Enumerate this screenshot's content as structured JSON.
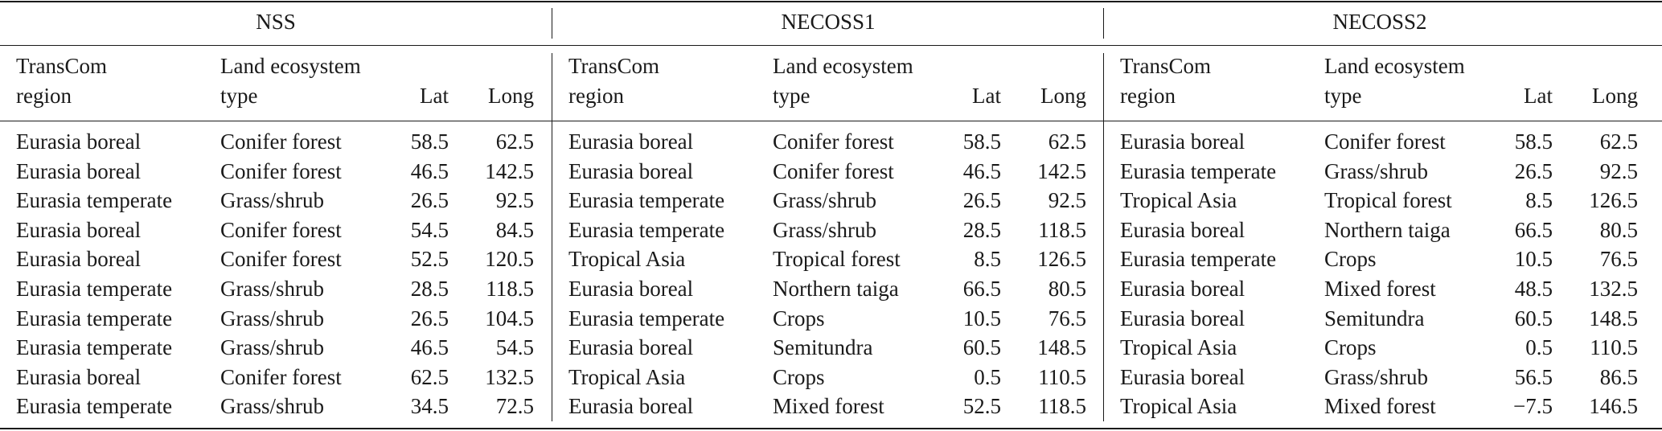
{
  "groups": [
    "NSS",
    "NECOSS1",
    "NECOSS2"
  ],
  "col_headers": {
    "region_line1": "TransCom",
    "region_line2": "region",
    "eco_line1": "Land ecosystem",
    "eco_line2": "type",
    "lat": "Lat",
    "long": "Long"
  },
  "rows": [
    [
      [
        "Eurasia boreal",
        "Conifer forest",
        "58.5",
        "62.5"
      ],
      [
        "Eurasia boreal",
        "Conifer forest",
        "58.5",
        "62.5"
      ],
      [
        "Eurasia boreal",
        "Conifer forest",
        "58.5",
        "62.5"
      ]
    ],
    [
      [
        "Eurasia boreal",
        "Conifer forest",
        "46.5",
        "142.5"
      ],
      [
        "Eurasia boreal",
        "Conifer forest",
        "46.5",
        "142.5"
      ],
      [
        "Eurasia temperate",
        "Grass/shrub",
        "26.5",
        "92.5"
      ]
    ],
    [
      [
        "Eurasia temperate",
        "Grass/shrub",
        "26.5",
        "92.5"
      ],
      [
        "Eurasia temperate",
        "Grass/shrub",
        "26.5",
        "92.5"
      ],
      [
        "Tropical Asia",
        "Tropical forest",
        "8.5",
        "126.5"
      ]
    ],
    [
      [
        "Eurasia boreal",
        "Conifer forest",
        "54.5",
        "84.5"
      ],
      [
        "Eurasia temperate",
        "Grass/shrub",
        "28.5",
        "118.5"
      ],
      [
        "Eurasia boreal",
        "Northern taiga",
        "66.5",
        "80.5"
      ]
    ],
    [
      [
        "Eurasia boreal",
        "Conifer forest",
        "52.5",
        "120.5"
      ],
      [
        "Tropical Asia",
        "Tropical forest",
        "8.5",
        "126.5"
      ],
      [
        "Eurasia temperate",
        "Crops",
        "10.5",
        "76.5"
      ]
    ],
    [
      [
        "Eurasia temperate",
        "Grass/shrub",
        "28.5",
        "118.5"
      ],
      [
        "Eurasia boreal",
        "Northern taiga",
        "66.5",
        "80.5"
      ],
      [
        "Eurasia boreal",
        "Mixed forest",
        "48.5",
        "132.5"
      ]
    ],
    [
      [
        "Eurasia temperate",
        "Grass/shrub",
        "26.5",
        "104.5"
      ],
      [
        "Eurasia temperate",
        "Crops",
        "10.5",
        "76.5"
      ],
      [
        "Eurasia boreal",
        "Semitundra",
        "60.5",
        "148.5"
      ]
    ],
    [
      [
        "Eurasia temperate",
        "Grass/shrub",
        "46.5",
        "54.5"
      ],
      [
        "Eurasia boreal",
        "Semitundra",
        "60.5",
        "148.5"
      ],
      [
        "Tropical Asia",
        "Crops",
        "0.5",
        "110.5"
      ]
    ],
    [
      [
        "Eurasia boreal",
        "Conifer forest",
        "62.5",
        "132.5"
      ],
      [
        "Tropical Asia",
        "Crops",
        "0.5",
        "110.5"
      ],
      [
        "Eurasia boreal",
        "Grass/shrub",
        "56.5",
        "86.5"
      ]
    ],
    [
      [
        "Eurasia temperate",
        "Grass/shrub",
        "34.5",
        "72.5"
      ],
      [
        "Eurasia boreal",
        "Mixed forest",
        "52.5",
        "118.5"
      ],
      [
        "Tropical Asia",
        "Mixed forest",
        "−7.5",
        "146.5"
      ]
    ]
  ]
}
